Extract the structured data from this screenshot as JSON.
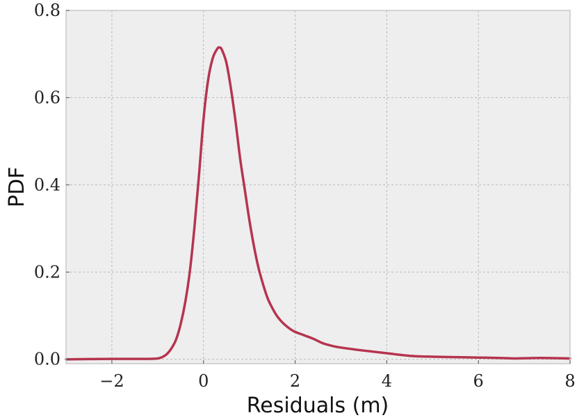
{
  "chart_data": {
    "type": "line",
    "title": "",
    "xlabel": "Residuals (m)",
    "ylabel": "PDF",
    "xlim": [
      -3,
      8
    ],
    "ylim": [
      -0.01,
      0.8
    ],
    "x_ticks": [
      -2,
      0,
      2,
      4,
      6,
      8
    ],
    "y_ticks": [
      0.0,
      0.2,
      0.4,
      0.6,
      0.8
    ],
    "x_tick_labels": [
      "−2",
      "0",
      "2",
      "4",
      "6",
      "8"
    ],
    "y_tick_labels": [
      "0.0",
      "0.2",
      "0.4",
      "0.6",
      "0.8"
    ],
    "grid": true,
    "colors": {
      "line": "#b5344f",
      "plot_background": "#eeeeee",
      "grid": "#b8b8b8",
      "frame": "#c8c8c8"
    },
    "series": [
      {
        "x": [
          -3.0,
          -2.0,
          -1.5,
          -1.2,
          -1.0,
          -0.9,
          -0.8,
          -0.7,
          -0.6,
          -0.5,
          -0.4,
          -0.3,
          -0.2,
          -0.1,
          0.0,
          0.1,
          0.2,
          0.3,
          0.35,
          0.4,
          0.5,
          0.6,
          0.7,
          0.8,
          0.9,
          1.0,
          1.1,
          1.2,
          1.3,
          1.4,
          1.5,
          1.6,
          1.7,
          1.8,
          1.9,
          2.0,
          2.2,
          2.4,
          2.6,
          2.8,
          3.0,
          3.5,
          4.0,
          4.5,
          5.0,
          5.5,
          6.0,
          6.5,
          6.8,
          7.2,
          7.5,
          8.0
        ],
        "y": [
          0.0,
          0.001,
          0.001,
          0.001,
          0.002,
          0.005,
          0.012,
          0.025,
          0.045,
          0.08,
          0.13,
          0.2,
          0.3,
          0.42,
          0.55,
          0.64,
          0.69,
          0.712,
          0.715,
          0.71,
          0.68,
          0.62,
          0.545,
          0.46,
          0.39,
          0.32,
          0.26,
          0.21,
          0.172,
          0.14,
          0.118,
          0.1,
          0.087,
          0.077,
          0.069,
          0.063,
          0.055,
          0.047,
          0.037,
          0.031,
          0.027,
          0.02,
          0.014,
          0.008,
          0.006,
          0.005,
          0.004,
          0.003,
          0.002,
          0.003,
          0.003,
          0.002
        ]
      }
    ]
  }
}
